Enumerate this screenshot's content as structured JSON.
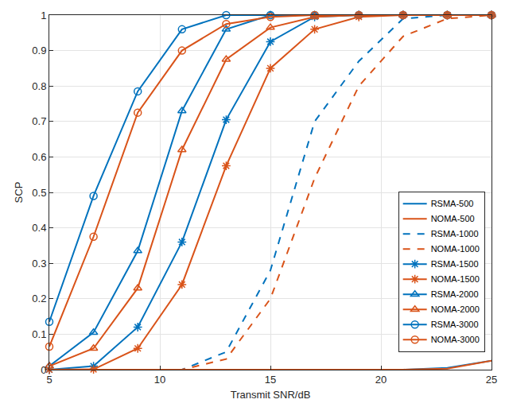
{
  "chart_data": {
    "type": "line",
    "x_label": "Transmit SNR/dB",
    "y_label": "SCP",
    "x": [
      5,
      7,
      9,
      11,
      13,
      15,
      17,
      19,
      21,
      23,
      25
    ],
    "xlim": [
      5,
      25
    ],
    "xticks": [
      5,
      10,
      15,
      20,
      25
    ],
    "ylim": [
      0,
      1
    ],
    "yticks": [
      0,
      0.1,
      0.2,
      0.3,
      0.4,
      0.5,
      0.6,
      0.7,
      0.8,
      0.9,
      1
    ],
    "grid": true,
    "legend": "lower right",
    "series": [
      {
        "name": "RSMA-500",
        "color": "#0072bd",
        "line_style": "solid",
        "marker": "none",
        "values": [
          0,
          0,
          0,
          0,
          0,
          0,
          0,
          0,
          0,
          0.005,
          0.025
        ]
      },
      {
        "name": "NOMA-500",
        "color": "#d95319",
        "line_style": "solid",
        "marker": "none",
        "values": [
          0,
          0,
          0,
          0,
          0,
          0,
          0,
          0,
          0,
          0.003,
          0.025
        ]
      },
      {
        "name": "RSMA-1000",
        "color": "#0072bd",
        "line_style": "dash",
        "marker": "none",
        "values": [
          0,
          0,
          0,
          0,
          0.05,
          0.28,
          0.7,
          0.87,
          0.99,
          1,
          1
        ]
      },
      {
        "name": "NOMA-1000",
        "color": "#d95319",
        "line_style": "dash",
        "marker": "none",
        "values": [
          0,
          0,
          0,
          0,
          0.03,
          0.2,
          0.54,
          0.8,
          0.94,
          0.99,
          1
        ]
      },
      {
        "name": "RSMA-1500",
        "color": "#0072bd",
        "line_style": "solid",
        "marker": "asterisk",
        "values": [
          0,
          0.01,
          0.12,
          0.36,
          0.705,
          0.925,
          0.995,
          1,
          1,
          1,
          1
        ]
      },
      {
        "name": "NOMA-1500",
        "color": "#d95319",
        "line_style": "solid",
        "marker": "asterisk",
        "values": [
          0,
          0.001,
          0.06,
          0.24,
          0.575,
          0.85,
          0.96,
          0.995,
          1,
          1,
          1
        ]
      },
      {
        "name": "RSMA-2000",
        "color": "#0072bd",
        "line_style": "solid",
        "marker": "triangle",
        "values": [
          0.01,
          0.105,
          0.335,
          0.73,
          0.96,
          1,
          1,
          1,
          1,
          1,
          1
        ]
      },
      {
        "name": "NOMA-2000",
        "color": "#d95319",
        "line_style": "solid",
        "marker": "triangle",
        "values": [
          0.01,
          0.06,
          0.23,
          0.62,
          0.875,
          0.965,
          0.995,
          1,
          1,
          1,
          1
        ]
      },
      {
        "name": "RSMA-3000",
        "color": "#0072bd",
        "line_style": "solid",
        "marker": "circle",
        "values": [
          0.135,
          0.49,
          0.785,
          0.96,
          1,
          1,
          1,
          1,
          1,
          1,
          1
        ]
      },
      {
        "name": "NOMA-3000",
        "color": "#d95319",
        "line_style": "solid",
        "marker": "circle",
        "values": [
          0.065,
          0.375,
          0.725,
          0.9,
          0.975,
          0.995,
          1,
          1,
          1,
          1,
          1
        ]
      }
    ]
  }
}
